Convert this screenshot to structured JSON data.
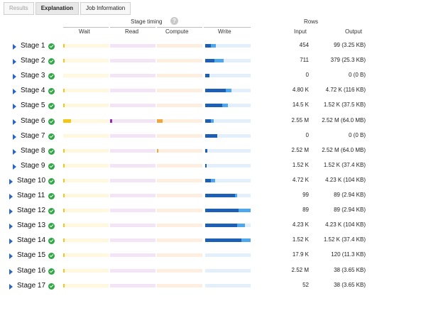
{
  "tabs": [
    "Results",
    "Explanation",
    "Job Information"
  ],
  "header": {
    "stage_timing": "Stage timing",
    "help": "?",
    "rows": "Rows",
    "wait": "Wait",
    "read": "Read",
    "compute": "Compute",
    "write": "Write",
    "input": "Input",
    "output": "Output"
  },
  "colors": {
    "wait_track": "#fff8df",
    "wait_fill": "#f5c518",
    "read_track": "#f3e5f6",
    "read_fill": "#9c27b0",
    "compute_track": "#fdeee0",
    "compute_fill": "#f5a43a",
    "write_track": "#e3f0fb",
    "write_fill": "#1c5fb5",
    "write_fill2": "#4ea6ec"
  },
  "stages": [
    {
      "name": "Stage 1",
      "input": "454",
      "output": "99 (3.25 KB)",
      "wait": 0.03,
      "read": 0,
      "compute": 0,
      "write": 0.12,
      "write2": 0.12
    },
    {
      "name": "Stage 2",
      "input": "711",
      "output": "379 (25.3 KB)",
      "wait": 0.03,
      "read": 0,
      "compute": 0,
      "write": 0.2,
      "write2": 0.2
    },
    {
      "name": "Stage 3",
      "input": "0",
      "output": "0 (0 B)",
      "wait": 0,
      "read": 0,
      "compute": 0,
      "write": 0.1,
      "write2": 0
    },
    {
      "name": "Stage 4",
      "input": "4.80 K",
      "output": "4.72 K (116 KB)",
      "wait": 0.03,
      "read": 0,
      "compute": 0,
      "write": 0.45,
      "write2": 0.13
    },
    {
      "name": "Stage 5",
      "input": "14.5 K",
      "output": "1.52 K (37.5 KB)",
      "wait": 0.03,
      "read": 0,
      "compute": 0,
      "write": 0.37,
      "write2": 0.13
    },
    {
      "name": "Stage 6",
      "input": "2.55 M",
      "output": "2.52 M (64.0 MB)",
      "wait": 0.17,
      "read": 0.04,
      "compute": 0.12,
      "write": 0.13,
      "write2": 0.05
    },
    {
      "name": "Stage 7",
      "input": "0",
      "output": "0 (0 B)",
      "wait": 0,
      "read": 0,
      "compute": 0,
      "write": 0.27,
      "write2": 0
    },
    {
      "name": "Stage 8",
      "input": "2.52 M",
      "output": "2.52 M (64.0 MB)",
      "wait": 0.03,
      "read": 0,
      "compute": 0.02,
      "write": 0.04,
      "write2": 0
    },
    {
      "name": "Stage 9",
      "input": "1.52 K",
      "output": "1.52 K (37.4 KB)",
      "wait": 0.03,
      "read": 0,
      "compute": 0,
      "write": 0.03,
      "write2": 0
    },
    {
      "name": "Stage 10",
      "input": "4.72 K",
      "output": "4.23 K (104 KB)",
      "wait": 0.03,
      "read": 0,
      "compute": 0,
      "write": 0.12,
      "write2": 0.1
    },
    {
      "name": "Stage 11",
      "input": "99",
      "output": "89 (2.94 KB)",
      "wait": 0.03,
      "read": 0,
      "compute": 0,
      "write": 0.65,
      "write2": 0.05
    },
    {
      "name": "Stage 12",
      "input": "89",
      "output": "89 (2.94 KB)",
      "wait": 0.03,
      "read": 0,
      "compute": 0,
      "write": 0.73,
      "write2": 0.27
    },
    {
      "name": "Stage 13",
      "input": "4.23 K",
      "output": "4.23 K (104 KB)",
      "wait": 0.03,
      "read": 0,
      "compute": 0,
      "write": 0.7,
      "write2": 0.17
    },
    {
      "name": "Stage 14",
      "input": "1.52 K",
      "output": "1.52 K (37.4 KB)",
      "wait": 0.03,
      "read": 0,
      "compute": 0,
      "write": 0.8,
      "write2": 0.2
    },
    {
      "name": "Stage 15",
      "input": "17.9 K",
      "output": "120 (11.3 KB)",
      "wait": 0.03,
      "read": 0,
      "compute": 0,
      "write": 0,
      "write2": 0
    },
    {
      "name": "Stage 16",
      "input": "2.52 M",
      "output": "38 (3.65 KB)",
      "wait": 0.03,
      "read": 0,
      "compute": 0,
      "write": 0,
      "write2": 0
    },
    {
      "name": "Stage 17",
      "input": "52",
      "output": "38 (3.65 KB)",
      "wait": 0.03,
      "read": 0,
      "compute": 0,
      "write": 0,
      "write2": 0
    }
  ]
}
